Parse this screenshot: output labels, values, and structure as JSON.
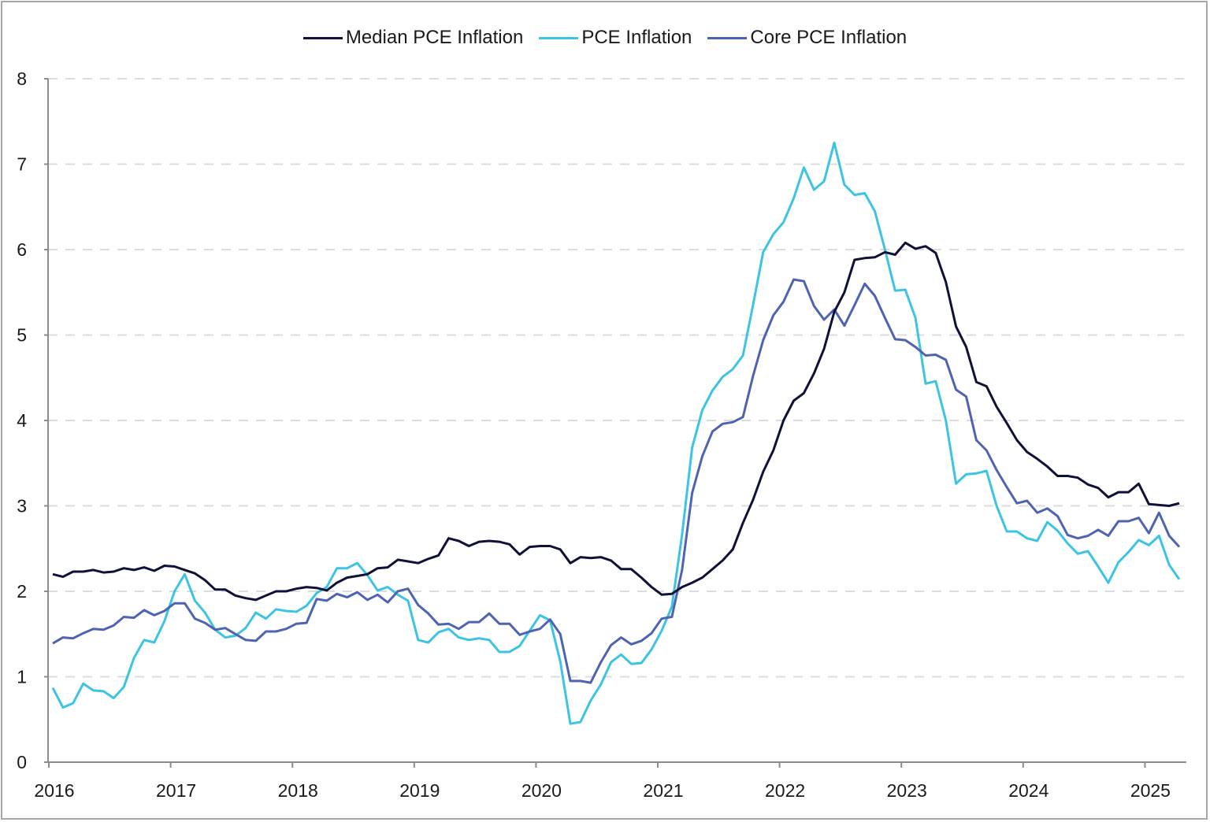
{
  "chart_data": {
    "type": "line",
    "title": "",
    "xlabel": "",
    "ylabel": "",
    "frequency": "monthly",
    "x_start": "2016-01",
    "x_end": "2025-04",
    "x_ticks": [
      "2016",
      "2017",
      "2018",
      "2019",
      "2020",
      "2021",
      "2022",
      "2023",
      "2024",
      "2025"
    ],
    "y_ticks": [
      0,
      1,
      2,
      3,
      4,
      5,
      6,
      7,
      8
    ],
    "ylim": [
      0,
      8
    ],
    "grid": "horizontal dashed",
    "legend_position": "top",
    "series": [
      {
        "name": "Median PCE Inflation",
        "color": "#0f1136",
        "values": [
          2.2,
          2.17,
          2.23,
          2.23,
          2.25,
          2.22,
          2.23,
          2.27,
          2.25,
          2.28,
          2.24,
          2.3,
          2.29,
          2.25,
          2.21,
          2.13,
          2.02,
          2.02,
          1.95,
          1.92,
          1.9,
          1.95,
          2.0,
          2.0,
          2.03,
          2.05,
          2.04,
          2.01,
          2.1,
          2.16,
          2.18,
          2.2,
          2.27,
          2.28,
          2.37,
          2.35,
          2.33,
          2.38,
          2.42,
          2.62,
          2.59,
          2.53,
          2.58,
          2.59,
          2.58,
          2.55,
          2.43,
          2.52,
          2.53,
          2.53,
          2.49,
          2.33,
          2.4,
          2.39,
          2.4,
          2.36,
          2.26,
          2.26,
          2.16,
          2.05,
          1.96,
          1.97,
          2.05,
          2.1,
          2.16,
          2.26,
          2.36,
          2.49,
          2.8,
          3.07,
          3.4,
          3.65,
          4.0,
          4.23,
          4.32,
          4.55,
          4.84,
          5.27,
          5.5,
          5.88,
          5.9,
          5.91,
          5.97,
          5.94,
          6.08,
          6.01,
          6.04,
          5.96,
          5.62,
          5.1,
          4.86,
          4.45,
          4.4,
          4.16,
          3.97,
          3.77,
          3.63,
          3.55,
          3.46,
          3.35,
          3.35,
          3.33,
          3.25,
          3.21,
          3.1,
          3.16,
          3.16,
          3.26,
          3.02,
          3.01,
          3.0,
          3.03
        ]
      },
      {
        "name": "PCE Inflation",
        "color": "#3dc3e3",
        "values": [
          0.87,
          0.64,
          0.69,
          0.92,
          0.84,
          0.83,
          0.75,
          0.88,
          1.22,
          1.43,
          1.4,
          1.65,
          2.0,
          2.2,
          1.89,
          1.75,
          1.55,
          1.46,
          1.48,
          1.57,
          1.75,
          1.68,
          1.79,
          1.77,
          1.76,
          1.83,
          1.98,
          2.05,
          2.27,
          2.27,
          2.33,
          2.19,
          2.01,
          2.05,
          1.96,
          1.89,
          1.43,
          1.4,
          1.52,
          1.56,
          1.46,
          1.43,
          1.45,
          1.43,
          1.29,
          1.29,
          1.36,
          1.54,
          1.72,
          1.66,
          1.18,
          0.45,
          0.47,
          0.72,
          0.91,
          1.17,
          1.26,
          1.15,
          1.16,
          1.32,
          1.54,
          1.82,
          2.66,
          3.68,
          4.12,
          4.35,
          4.51,
          4.6,
          4.76,
          5.35,
          5.97,
          6.18,
          6.32,
          6.6,
          6.96,
          6.7,
          6.8,
          7.25,
          6.76,
          6.64,
          6.66,
          6.45,
          6.0,
          5.52,
          5.53,
          5.2,
          4.43,
          4.46,
          4.0,
          3.26,
          3.37,
          3.38,
          3.41,
          3.0,
          2.7,
          2.7,
          2.62,
          2.59,
          2.81,
          2.71,
          2.56,
          2.44,
          2.47,
          2.29,
          2.1,
          2.34,
          2.46,
          2.6,
          2.54,
          2.65,
          2.31,
          2.14
        ]
      },
      {
        "name": "Core PCE Inflation",
        "color": "#4f63b3",
        "values": [
          1.39,
          1.46,
          1.45,
          1.51,
          1.56,
          1.55,
          1.6,
          1.7,
          1.69,
          1.78,
          1.72,
          1.77,
          1.86,
          1.86,
          1.68,
          1.63,
          1.55,
          1.57,
          1.5,
          1.43,
          1.42,
          1.53,
          1.53,
          1.56,
          1.62,
          1.63,
          1.91,
          1.89,
          1.97,
          1.93,
          1.99,
          1.9,
          1.96,
          1.87,
          2.0,
          2.03,
          1.84,
          1.74,
          1.61,
          1.62,
          1.56,
          1.64,
          1.64,
          1.74,
          1.62,
          1.62,
          1.49,
          1.53,
          1.56,
          1.67,
          1.5,
          0.95,
          0.95,
          0.93,
          1.17,
          1.37,
          1.46,
          1.38,
          1.42,
          1.51,
          1.68,
          1.7,
          2.25,
          3.15,
          3.58,
          3.87,
          3.96,
          3.98,
          4.04,
          4.52,
          4.94,
          5.23,
          5.39,
          5.65,
          5.63,
          5.34,
          5.18,
          5.3,
          5.11,
          5.35,
          5.6,
          5.46,
          5.2,
          4.95,
          4.94,
          4.86,
          4.76,
          4.77,
          4.71,
          4.36,
          4.28,
          3.77,
          3.65,
          3.42,
          3.22,
          3.03,
          3.06,
          2.92,
          2.97,
          2.88,
          2.66,
          2.62,
          2.65,
          2.72,
          2.65,
          2.82,
          2.82,
          2.86,
          2.68,
          2.92,
          2.65,
          2.52
        ]
      }
    ]
  }
}
